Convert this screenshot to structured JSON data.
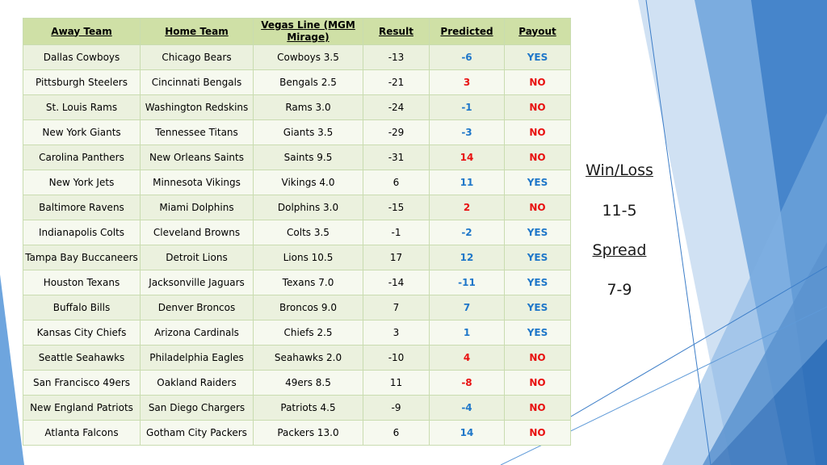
{
  "table": {
    "headers": [
      "Away Team",
      "Home Team",
      "Vegas Line (MGM Mirage)",
      "Result",
      "Predicted",
      "Payout"
    ],
    "rows": [
      {
        "away": "Dallas Cowboys",
        "home": "Chicago Bears",
        "line": "Cowboys 3.5",
        "result": "-13",
        "predicted": "-6",
        "payout": "YES"
      },
      {
        "away": "Pittsburgh Steelers",
        "home": "Cincinnati Bengals",
        "line": "Bengals 2.5",
        "result": "-21",
        "predicted": "3",
        "payout": "NO"
      },
      {
        "away": "St. Louis Rams",
        "home": "Washington Redskins",
        "line": "Rams 3.0",
        "result": "-24",
        "predicted": "-1",
        "payout": "NO"
      },
      {
        "away": "New York Giants",
        "home": "Tennessee Titans",
        "line": "Giants 3.5",
        "result": "-29",
        "predicted": "-3",
        "payout": "NO"
      },
      {
        "away": "Carolina Panthers",
        "home": "New Orleans Saints",
        "line": "Saints 9.5",
        "result": "-31",
        "predicted": "14",
        "payout": "NO"
      },
      {
        "away": "New York Jets",
        "home": "Minnesota Vikings",
        "line": "Vikings 4.0",
        "result": "6",
        "predicted": "11",
        "payout": "YES"
      },
      {
        "away": "Baltimore Ravens",
        "home": "Miami Dolphins",
        "line": "Dolphins 3.0",
        "result": "-15",
        "predicted": "2",
        "payout": "NO"
      },
      {
        "away": "Indianapolis Colts",
        "home": "Cleveland Browns",
        "line": "Colts 3.5",
        "result": "-1",
        "predicted": "-2",
        "payout": "YES"
      },
      {
        "away": "Tampa Bay Buccaneers",
        "home": "Detroit Lions",
        "line": "Lions 10.5",
        "result": "17",
        "predicted": "12",
        "payout": "YES"
      },
      {
        "away": "Houston Texans",
        "home": "Jacksonville Jaguars",
        "line": "Texans 7.0",
        "result": "-14",
        "predicted": "-11",
        "payout": "YES"
      },
      {
        "away": "Buffalo Bills",
        "home": "Denver Broncos",
        "line": "Broncos 9.0",
        "result": "7",
        "predicted": "7",
        "payout": "YES"
      },
      {
        "away": "Kansas City Chiefs",
        "home": "Arizona Cardinals",
        "line": "Chiefs 2.5",
        "result": "3",
        "predicted": "1",
        "payout": "YES"
      },
      {
        "away": "Seattle Seahawks",
        "home": "Philadelphia Eagles",
        "line": "Seahawks 2.0",
        "result": "-10",
        "predicted": "4",
        "payout": "NO"
      },
      {
        "away": "San Francisco 49ers",
        "home": "Oakland Raiders",
        "line": "49ers 8.5",
        "result": "11",
        "predicted": "-8",
        "payout": "NO"
      },
      {
        "away": "New England Patriots",
        "home": "San Diego Chargers",
        "line": "Patriots 4.5",
        "result": "-9",
        "predicted": "-4",
        "payout": "NO"
      },
      {
        "away": "Atlanta Falcons",
        "home": "Gotham City Packers",
        "line": "Packers 13.0",
        "result": "6",
        "predicted": "14",
        "payout": "NO"
      }
    ]
  },
  "summary": {
    "winloss_label": "Win/Loss",
    "winloss_value": "11-5",
    "spread_label": "Spread",
    "spread_value": "7-9"
  },
  "colors": {
    "header_bg": "#cfe0a6",
    "row_odd": "#ebf1de",
    "row_even": "#f6f9ef",
    "blue_text": "#1f77c9",
    "red_text": "#e81010",
    "accent_blue": "#4a8fd6"
  }
}
